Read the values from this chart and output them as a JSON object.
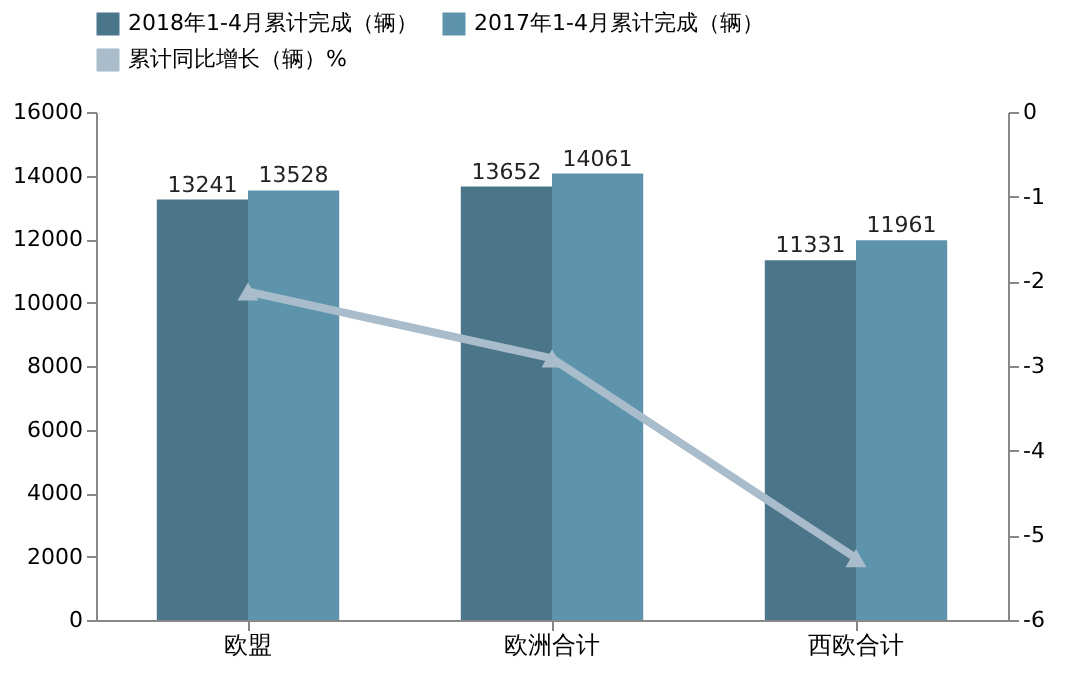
{
  "chart_data": {
    "type": "bar",
    "categories": [
      "欧盟",
      "欧洲合计",
      "西欧合计"
    ],
    "series": [
      {
        "name": "2018年1-4月累计完成（辆）",
        "color": "#4b7689",
        "values": [
          13241,
          13652,
          11331
        ],
        "value_labels": [
          "13241",
          "13652",
          "11331"
        ]
      },
      {
        "name": "2017年1-4月累计完成（辆）",
        "color": "#5d94ab",
        "values": [
          13528,
          14061,
          11961
        ],
        "value_labels": [
          "13528",
          "14061",
          "11961"
        ]
      },
      {
        "name": "累计同比增长（辆）%",
        "type": "line",
        "axis": "y2",
        "color": "#a9bccb",
        "marker": "triangle",
        "values": [
          -2.12,
          -2.91,
          -5.27
        ]
      }
    ],
    "ylim": [
      0,
      16000
    ],
    "yticks": [
      0,
      2000,
      4000,
      6000,
      8000,
      10000,
      12000,
      14000,
      16000
    ],
    "y2lim": [
      -6,
      0
    ],
    "y2ticks": [
      -6,
      -5,
      -4,
      -3,
      -2,
      -1,
      0
    ],
    "legend": "top",
    "grid": false
  }
}
